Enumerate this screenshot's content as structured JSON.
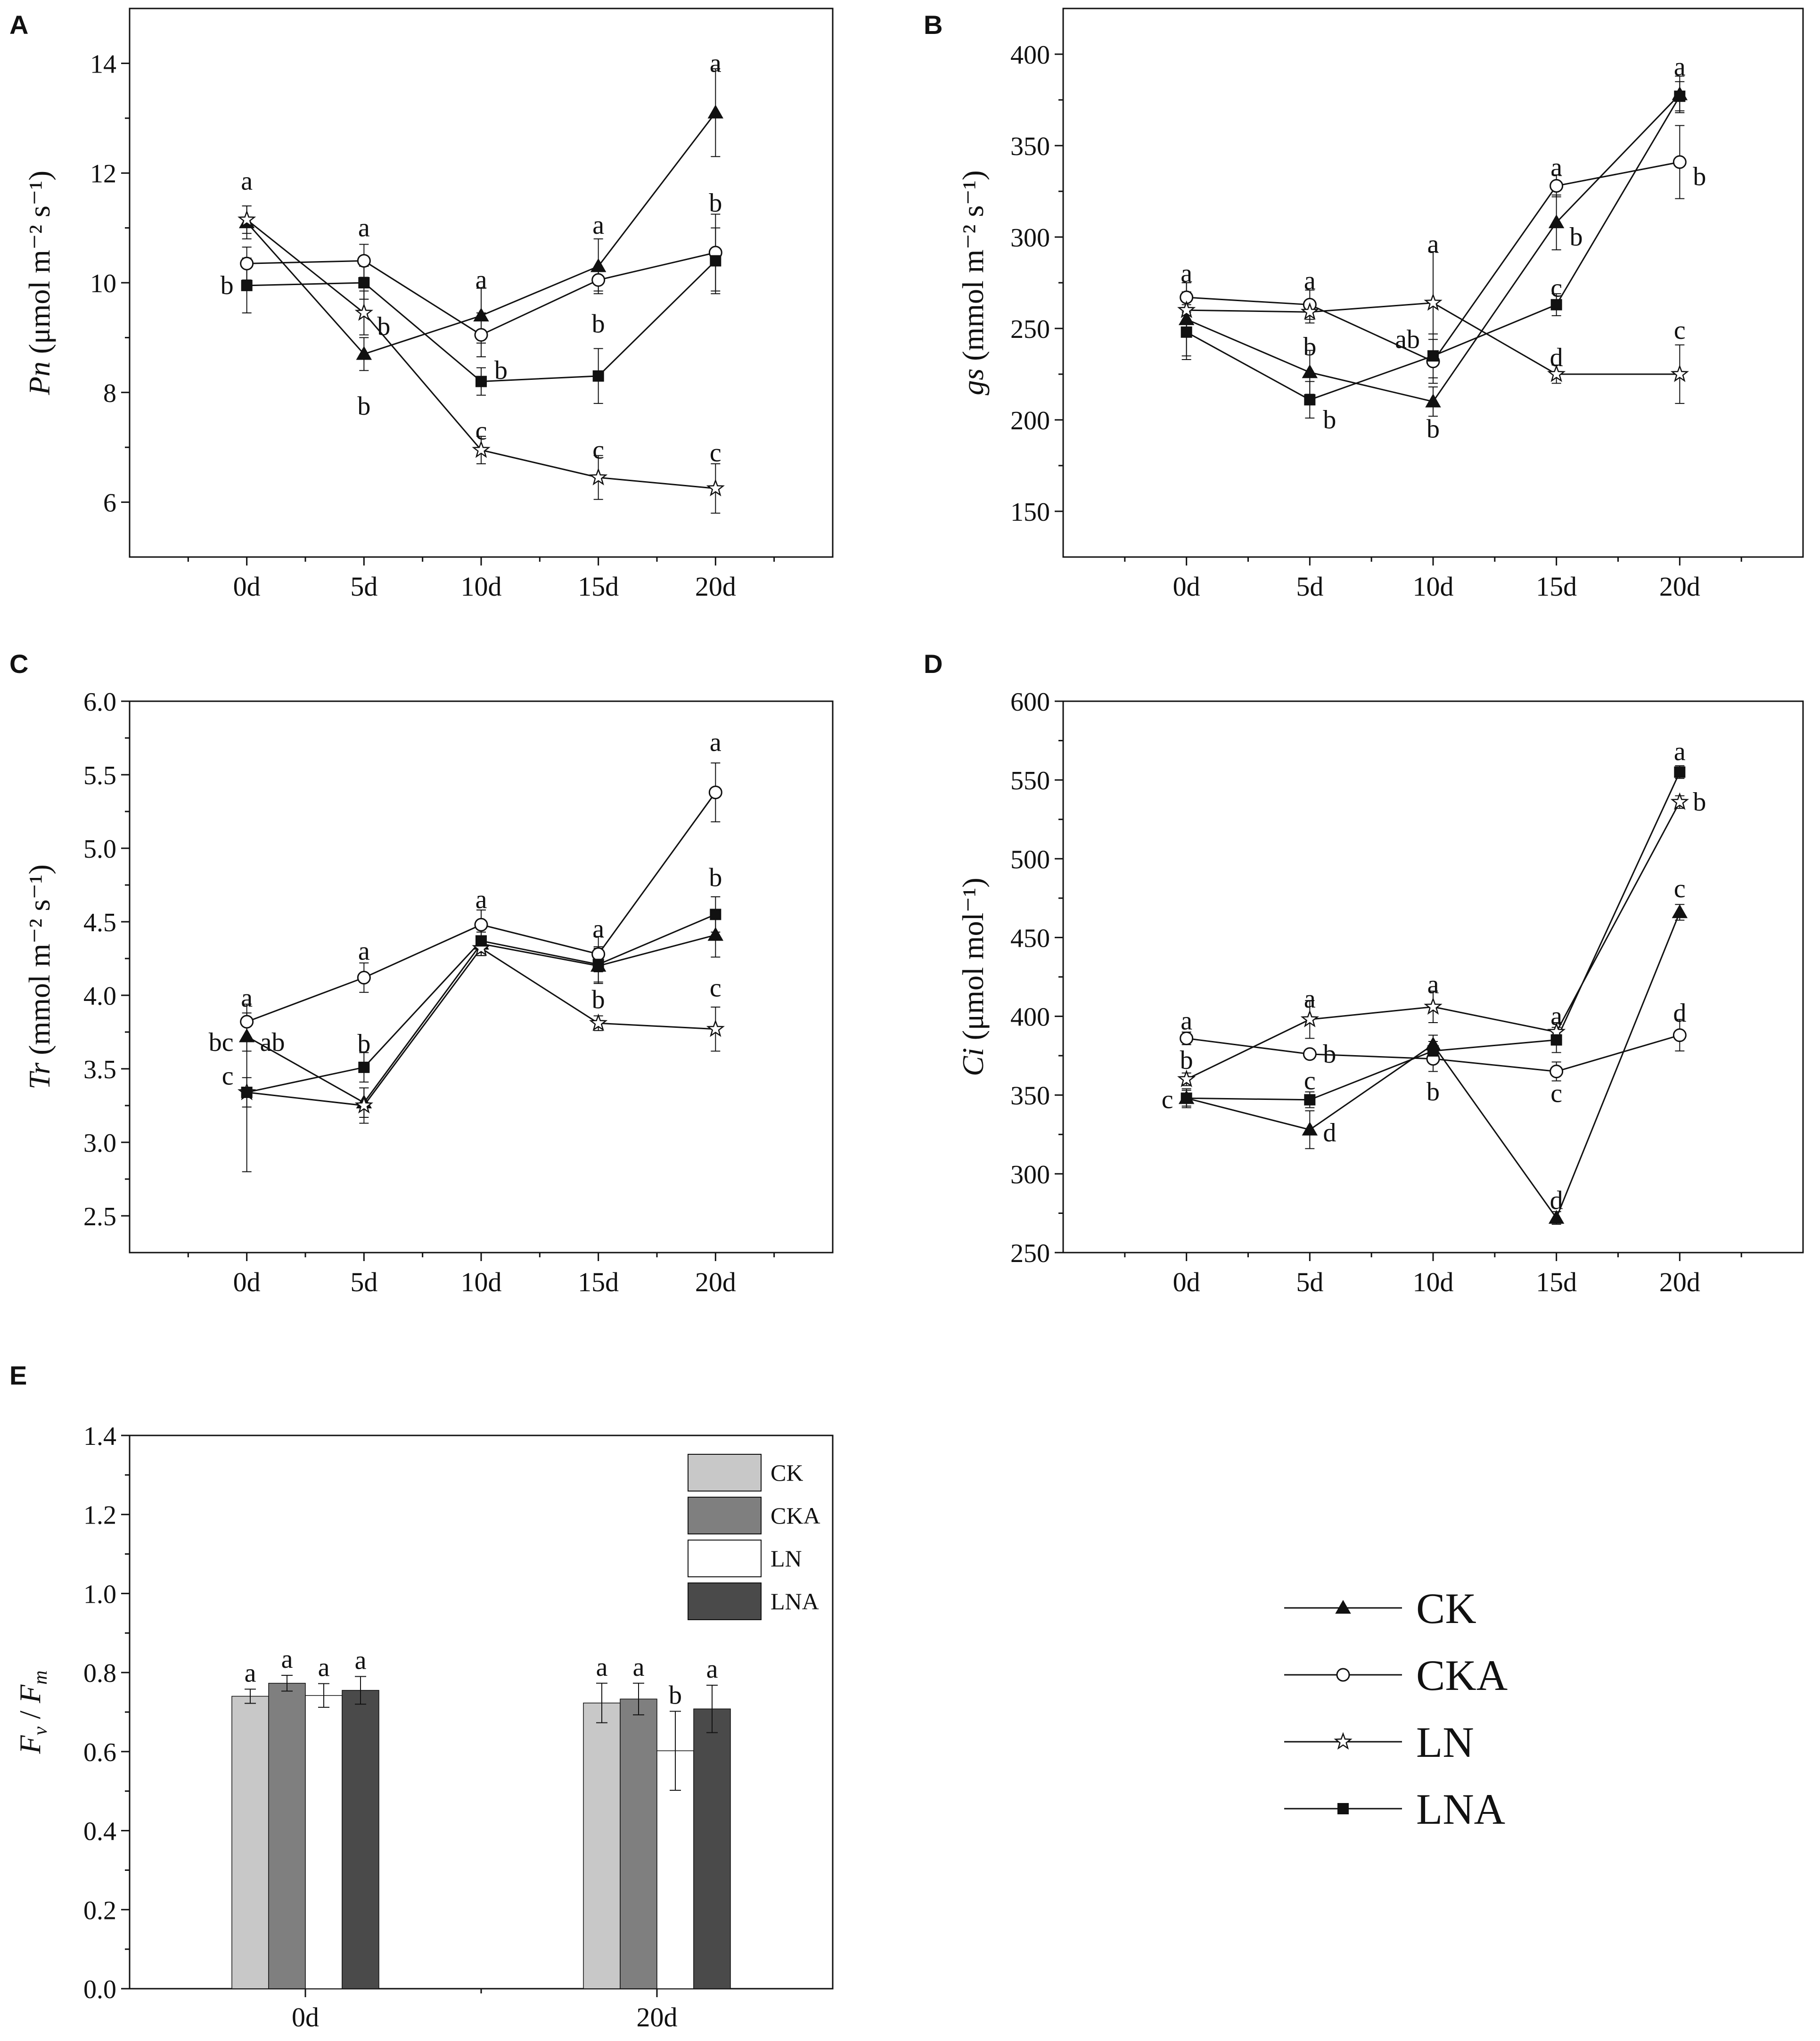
{
  "figure": {
    "legend_line": [
      {
        "label": "CK",
        "marker": "filled-triangle"
      },
      {
        "label": "CKA",
        "marker": "open-circle"
      },
      {
        "label": "LN",
        "marker": "open-star"
      },
      {
        "label": "LNA",
        "marker": "filled-square"
      }
    ],
    "colors": {
      "axis": "#111111",
      "CK": "#c8c8c8",
      "CKA": "#7f7f7f",
      "LN": "#ffffff",
      "LNA": "#4a4a4a"
    }
  },
  "chart_data": [
    {
      "id": "A",
      "letter": "A",
      "type": "line",
      "ylabel_italic": "Pn",
      "ylabel_unit": "(μmol m⁻² s⁻¹)",
      "categories": [
        "0d",
        "5d",
        "10d",
        "15d",
        "20d"
      ],
      "ylim": [
        5,
        15
      ],
      "yticks": [
        6,
        8,
        10,
        12,
        14
      ],
      "series": [
        {
          "name": "CK",
          "marker": "filled-triangle",
          "values": [
            11.1,
            8.7,
            9.4,
            10.3,
            13.1
          ],
          "err": [
            0.3,
            0.3,
            0.5,
            0.5,
            0.8
          ]
        },
        {
          "name": "CKA",
          "marker": "open-circle",
          "values": [
            10.35,
            10.4,
            9.05,
            10.05,
            10.55
          ],
          "err": [
            0.3,
            0.3,
            0.4,
            0.2,
            0.7
          ]
        },
        {
          "name": "LN",
          "marker": "open-star",
          "values": [
            11.15,
            9.45,
            6.95,
            6.45,
            6.25
          ],
          "err": [
            0.25,
            0.4,
            0.25,
            0.4,
            0.45
          ]
        },
        {
          "name": "LNA",
          "marker": "filled-square",
          "values": [
            9.95,
            10.0,
            8.2,
            8.3,
            10.4
          ],
          "err": [
            0.5,
            0.3,
            0.25,
            0.5,
            0.6
          ]
        }
      ],
      "annotations": [
        {
          "text": "a",
          "cat": 0,
          "y": 11.85,
          "pos": "center"
        },
        {
          "text": "b",
          "cat": 0,
          "y": 9.95,
          "pos": "left"
        },
        {
          "text": "a",
          "cat": 1,
          "y": 11.0,
          "pos": "center"
        },
        {
          "text": "b",
          "cat": 1,
          "y": 9.2,
          "pos": "right"
        },
        {
          "text": "b",
          "cat": 1,
          "y": 7.75,
          "pos": "center"
        },
        {
          "text": "a",
          "cat": 2,
          "y": 10.05,
          "pos": "center"
        },
        {
          "text": "b",
          "cat": 2,
          "y": 8.4,
          "pos": "right"
        },
        {
          "text": "c",
          "cat": 2,
          "y": 7.3,
          "pos": "center"
        },
        {
          "text": "a",
          "cat": 3,
          "y": 11.05,
          "pos": "center"
        },
        {
          "text": "b",
          "cat": 3,
          "y": 9.25,
          "pos": "center"
        },
        {
          "text": "c",
          "cat": 3,
          "y": 6.95,
          "pos": "center"
        },
        {
          "text": "a",
          "cat": 4,
          "y": 14.0,
          "pos": "center"
        },
        {
          "text": "b",
          "cat": 4,
          "y": 11.45,
          "pos": "center"
        },
        {
          "text": "c",
          "cat": 4,
          "y": 6.9,
          "pos": "center"
        }
      ]
    },
    {
      "id": "B",
      "letter": "B",
      "type": "line",
      "ylabel_italic": "gs",
      "ylabel_unit": "(mmol m⁻² s⁻¹)",
      "categories": [
        "0d",
        "5d",
        "10d",
        "15d",
        "20d"
      ],
      "ylim": [
        125,
        425
      ],
      "yticks": [
        150,
        200,
        250,
        300,
        350,
        400
      ],
      "series": [
        {
          "name": "CK",
          "marker": "filled-triangle",
          "values": [
            255,
            226,
            210,
            308,
            378
          ],
          "err": [
            20,
            12,
            8,
            15,
            10
          ]
        },
        {
          "name": "CKA",
          "marker": "open-circle",
          "values": [
            267,
            263,
            232,
            328,
            341
          ],
          "err": [
            8,
            8,
            12,
            6,
            20
          ]
        },
        {
          "name": "LN",
          "marker": "open-star",
          "values": [
            260,
            259,
            264,
            225,
            225
          ],
          "err": [
            10,
            6,
            28,
            5,
            16
          ]
        },
        {
          "name": "LNA",
          "marker": "filled-square",
          "values": [
            248,
            211,
            235,
            263,
            377
          ],
          "err": [
            15,
            10,
            12,
            6,
            8
          ]
        }
      ],
      "annotations": [
        {
          "text": "a",
          "cat": 0,
          "y": 280,
          "pos": "center"
        },
        {
          "text": "a",
          "cat": 1,
          "y": 276,
          "pos": "center"
        },
        {
          "text": "b",
          "cat": 1,
          "y": 240,
          "pos": "center"
        },
        {
          "text": "b",
          "cat": 1,
          "y": 200,
          "pos": "right"
        },
        {
          "text": "a",
          "cat": 2,
          "y": 296,
          "pos": "center"
        },
        {
          "text": "ab",
          "cat": 2,
          "y": 244,
          "pos": "left"
        },
        {
          "text": "b",
          "cat": 2,
          "y": 195,
          "pos": "center"
        },
        {
          "text": "a",
          "cat": 3,
          "y": 338,
          "pos": "center"
        },
        {
          "text": "b",
          "cat": 3,
          "y": 300,
          "pos": "right"
        },
        {
          "text": "c",
          "cat": 3,
          "y": 272,
          "pos": "center"
        },
        {
          "text": "d",
          "cat": 3,
          "y": 234,
          "pos": "center"
        },
        {
          "text": "a",
          "cat": 4,
          "y": 393,
          "pos": "center"
        },
        {
          "text": "b",
          "cat": 4,
          "y": 333,
          "pos": "right"
        },
        {
          "text": "c",
          "cat": 4,
          "y": 249,
          "pos": "center"
        }
      ]
    },
    {
      "id": "C",
      "letter": "C",
      "type": "line",
      "ylabel_italic": "Tr",
      "ylabel_unit": "(mmol m⁻² s⁻¹)",
      "categories": [
        "0d",
        "5d",
        "10d",
        "15d",
        "20d"
      ],
      "ylim": [
        2.25,
        6.0
      ],
      "yticks": [
        2.5,
        3.0,
        3.5,
        4.0,
        4.5,
        5.0,
        5.5,
        6.0
      ],
      "series": [
        {
          "name": "CK",
          "marker": "filled-triangle",
          "values": [
            3.72,
            3.27,
            4.35,
            4.2,
            4.41
          ],
          "err": [
            0.1,
            0.1,
            0.08,
            0.12,
            0.15
          ]
        },
        {
          "name": "CKA",
          "marker": "open-circle",
          "values": [
            3.82,
            4.12,
            4.48,
            4.28,
            5.38
          ],
          "err": [
            0.12,
            0.1,
            0.1,
            0.12,
            0.2
          ]
        },
        {
          "name": "LN",
          "marker": "open-star",
          "values": [
            3.34,
            3.25,
            4.32,
            3.81,
            3.77
          ],
          "err": [
            0.1,
            0.12,
            0.05,
            0.05,
            0.15
          ]
        },
        {
          "name": "LNA",
          "marker": "filled-square",
          "values": [
            3.34,
            3.51,
            4.37,
            4.21,
            4.55
          ],
          "err": [
            0.54,
            0.1,
            0.08,
            0.12,
            0.12
          ]
        }
      ],
      "annotations": [
        {
          "text": "a",
          "cat": 0,
          "y": 3.98,
          "pos": "center"
        },
        {
          "text": "bc",
          "cat": 0,
          "y": 3.68,
          "pos": "left"
        },
        {
          "text": "ab",
          "cat": 0,
          "y": 3.68,
          "pos": "right"
        },
        {
          "text": "c",
          "cat": 0,
          "y": 3.45,
          "pos": "left"
        },
        {
          "text": "a",
          "cat": 1,
          "y": 4.3,
          "pos": "center"
        },
        {
          "text": "b",
          "cat": 1,
          "y": 3.67,
          "pos": "center"
        },
        {
          "text": "a",
          "cat": 2,
          "y": 4.65,
          "pos": "center"
        },
        {
          "text": "a",
          "cat": 3,
          "y": 4.45,
          "pos": "center"
        },
        {
          "text": "b",
          "cat": 3,
          "y": 3.97,
          "pos": "center"
        },
        {
          "text": "a",
          "cat": 4,
          "y": 5.72,
          "pos": "center"
        },
        {
          "text": "b",
          "cat": 4,
          "y": 4.8,
          "pos": "center"
        },
        {
          "text": "c",
          "cat": 4,
          "y": 4.05,
          "pos": "center"
        }
      ]
    },
    {
      "id": "D",
      "letter": "D",
      "type": "line",
      "ylabel_italic": "Ci",
      "ylabel_unit": "(μmol mol⁻¹)",
      "categories": [
        "0d",
        "5d",
        "10d",
        "15d",
        "20d"
      ],
      "ylim": [
        250,
        600
      ],
      "yticks": [
        250,
        300,
        350,
        400,
        450,
        500,
        550,
        600
      ],
      "series": [
        {
          "name": "CK",
          "marker": "filled-triangle",
          "values": [
            348,
            328,
            382,
            272,
            466
          ],
          "err": [
            5,
            12,
            6,
            4,
            5
          ]
        },
        {
          "name": "CKA",
          "marker": "open-circle",
          "values": [
            386,
            376,
            373,
            365,
            388
          ],
          "err": [
            4,
            3,
            8,
            6,
            10
          ]
        },
        {
          "name": "LN",
          "marker": "open-star",
          "values": [
            360,
            398,
            406,
            390,
            536
          ],
          "err": [
            4,
            12,
            10,
            6,
            4
          ]
        },
        {
          "name": "LNA",
          "marker": "filled-square",
          "values": [
            348,
            347,
            378,
            385,
            555
          ],
          "err": [
            6,
            5,
            6,
            8,
            4
          ]
        }
      ],
      "annotations": [
        {
          "text": "a",
          "cat": 0,
          "y": 397,
          "pos": "center"
        },
        {
          "text": "b",
          "cat": 0,
          "y": 372,
          "pos": "center"
        },
        {
          "text": "c",
          "cat": 0,
          "y": 347,
          "pos": "left"
        },
        {
          "text": "a",
          "cat": 1,
          "y": 411,
          "pos": "center"
        },
        {
          "text": "b",
          "cat": 1,
          "y": 376,
          "pos": "right"
        },
        {
          "text": "c",
          "cat": 1,
          "y": 359,
          "pos": "center"
        },
        {
          "text": "d",
          "cat": 1,
          "y": 326,
          "pos": "right"
        },
        {
          "text": "a",
          "cat": 2,
          "y": 420,
          "pos": "center"
        },
        {
          "text": "b",
          "cat": 2,
          "y": 352,
          "pos": "center"
        },
        {
          "text": "a",
          "cat": 3,
          "y": 400,
          "pos": "center"
        },
        {
          "text": "c",
          "cat": 3,
          "y": 351,
          "pos": "center"
        },
        {
          "text": "d",
          "cat": 3,
          "y": 283,
          "pos": "center"
        },
        {
          "text": "a",
          "cat": 4,
          "y": 568,
          "pos": "center"
        },
        {
          "text": "b",
          "cat": 4,
          "y": 536,
          "pos": "right"
        },
        {
          "text": "c",
          "cat": 4,
          "y": 481,
          "pos": "center"
        },
        {
          "text": "d",
          "cat": 4,
          "y": 402,
          "pos": "center"
        }
      ]
    },
    {
      "id": "E",
      "letter": "E",
      "type": "bar",
      "ylabel_F1": "F",
      "ylabel_sub1": "v",
      "ylabel_sep": " / ",
      "ylabel_F2": "F",
      "ylabel_sub2": "m",
      "categories": [
        "0d",
        "20d"
      ],
      "ylim": [
        0,
        1.4
      ],
      "yticks": [
        0.0,
        0.2,
        0.4,
        0.6,
        0.8,
        1.0,
        1.2,
        1.4
      ],
      "series": [
        {
          "name": "CK",
          "color": "#c8c8c8",
          "values": [
            0.74,
            0.723
          ],
          "err": [
            0.018,
            0.05
          ]
        },
        {
          "name": "CKA",
          "color": "#7f7f7f",
          "values": [
            0.773,
            0.733
          ],
          "err": [
            0.02,
            0.04
          ]
        },
        {
          "name": "LN",
          "color": "#ffffff",
          "values": [
            0.742,
            0.602
          ],
          "err": [
            0.03,
            0.1
          ]
        },
        {
          "name": "LNA",
          "color": "#4a4a4a",
          "values": [
            0.755,
            0.708
          ],
          "err": [
            0.035,
            0.06
          ]
        }
      ],
      "bar_labels": [
        [
          "a",
          "a",
          "a",
          "a"
        ],
        [
          "a",
          "a",
          "b",
          "a"
        ]
      ]
    }
  ]
}
